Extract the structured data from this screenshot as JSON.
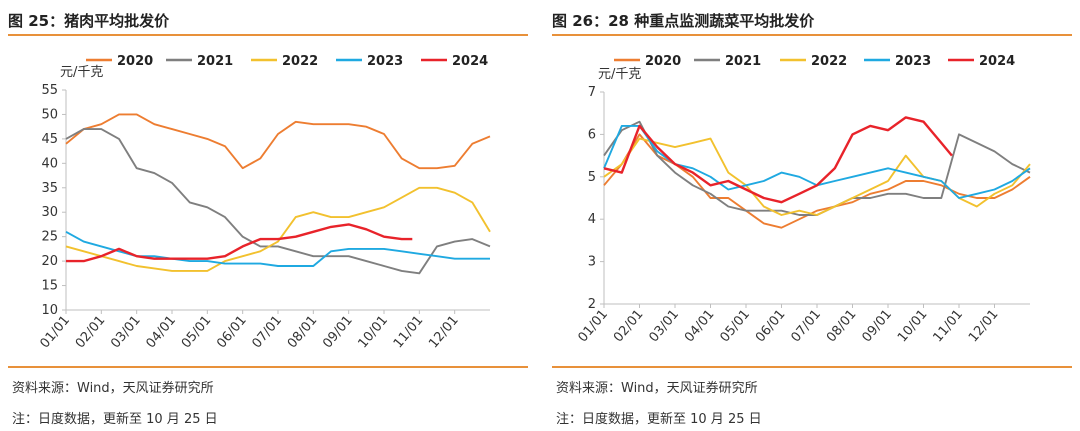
{
  "charts": [
    {
      "title": "图 25：猪肉平均批发价",
      "source": "资料来源：Wind，天风证券研究所",
      "note": "注：日度数据，更新至 10 月 25 日"
    },
    {
      "title": "图 26：28 种重点监测蔬菜平均批发价",
      "source": "资料来源：Wind，天风证券研究所",
      "note": "注：日度数据，更新至 10 月 25 日"
    }
  ],
  "chart_data": [
    {
      "type": "line",
      "ylabel": "元/千克",
      "ylim": [
        10,
        55
      ],
      "yticks": [
        10,
        15,
        20,
        25,
        30,
        35,
        40,
        45,
        50,
        55
      ],
      "categories": [
        "01/01",
        "02/01",
        "03/01",
        "04/01",
        "05/01",
        "06/01",
        "07/01",
        "08/01",
        "09/01",
        "10/01",
        "11/01",
        "12/01"
      ],
      "legend": "top",
      "series": [
        {
          "name": "2020",
          "color": "#ed7d31",
          "x": [
            0,
            0.5,
            1,
            1.5,
            2,
            2.5,
            3,
            3.5,
            4,
            4.5,
            5,
            5.5,
            6,
            6.5,
            7,
            7.5,
            8,
            8.5,
            9,
            9.5,
            10,
            10.5,
            11,
            11.5,
            12
          ],
          "values": [
            44,
            47,
            48,
            50,
            50,
            48,
            47,
            46,
            45,
            43.5,
            39,
            41,
            46,
            48.5,
            48,
            48,
            48,
            47.5,
            46,
            41,
            39,
            39,
            39.5,
            44,
            45.5
          ]
        },
        {
          "name": "2021",
          "color": "#7f7f7f",
          "x": [
            0,
            0.5,
            1,
            1.5,
            2,
            2.5,
            3,
            3.5,
            4,
            4.5,
            5,
            5.5,
            6,
            6.5,
            7,
            7.5,
            8,
            8.5,
            9,
            9.5,
            10,
            10.5,
            11,
            11.5,
            12
          ],
          "values": [
            45,
            47,
            47,
            45,
            39,
            38,
            36,
            32,
            31,
            29,
            25,
            23,
            23,
            22,
            21,
            21,
            21,
            20,
            19,
            18,
            17.5,
            23,
            24,
            24.5,
            23
          ]
        },
        {
          "name": "2022",
          "color": "#f2c12e",
          "x": [
            0,
            0.5,
            1,
            1.5,
            2,
            2.5,
            3,
            3.5,
            4,
            4.5,
            5,
            5.5,
            6,
            6.5,
            7,
            7.5,
            8,
            8.5,
            9,
            9.5,
            10,
            10.5,
            11,
            11.5,
            12
          ],
          "values": [
            23,
            22,
            21,
            20,
            19,
            18.5,
            18,
            18,
            18,
            20,
            21,
            22,
            24,
            29,
            30,
            29,
            29,
            30,
            31,
            33,
            35,
            35,
            34,
            32,
            26
          ]
        },
        {
          "name": "2023",
          "color": "#1fa9e1",
          "x": [
            0,
            0.5,
            1,
            1.5,
            2,
            2.5,
            3,
            3.5,
            4,
            4.5,
            5,
            5.5,
            6,
            6.5,
            7,
            7.5,
            8,
            8.5,
            9,
            9.5,
            10,
            10.5,
            11,
            11.5,
            12
          ],
          "values": [
            26,
            24,
            23,
            22,
            21,
            21,
            20.5,
            20,
            20,
            19.5,
            19.5,
            19.5,
            19,
            19,
            19,
            22,
            22.5,
            22.5,
            22.5,
            22,
            21.5,
            21,
            20.5,
            20.5,
            20.5
          ]
        },
        {
          "name": "2024",
          "color": "#e8232a",
          "x": [
            0,
            0.5,
            1,
            1.5,
            2,
            2.5,
            3,
            3.5,
            4,
            4.5,
            5,
            5.5,
            6,
            6.5,
            7,
            7.5,
            8,
            8.5,
            9,
            9.5,
            9.8
          ],
          "values": [
            20,
            20,
            21,
            22.5,
            21,
            20.5,
            20.5,
            20.5,
            20.5,
            21,
            23,
            24.5,
            24.5,
            25,
            26,
            27,
            27.5,
            26.5,
            25,
            24.5,
            24.5
          ]
        }
      ]
    },
    {
      "type": "line",
      "ylabel": "元/千克",
      "ylim": [
        2,
        7
      ],
      "yticks": [
        2,
        3,
        4,
        5,
        6,
        7
      ],
      "categories": [
        "01/01",
        "02/01",
        "03/01",
        "04/01",
        "05/01",
        "06/01",
        "07/01",
        "08/01",
        "09/01",
        "10/01",
        "11/01",
        "12/01"
      ],
      "legend": "top",
      "series": [
        {
          "name": "2020",
          "color": "#ed7d31",
          "x": [
            0,
            0.5,
            1,
            1.5,
            2,
            2.5,
            3,
            3.5,
            4,
            4.5,
            5,
            5.5,
            6,
            6.5,
            7,
            7.5,
            8,
            8.5,
            9,
            9.5,
            10,
            10.5,
            11,
            11.5,
            12
          ],
          "values": [
            4.8,
            5.3,
            6.0,
            5.5,
            5.3,
            5.0,
            4.5,
            4.5,
            4.2,
            3.9,
            3.8,
            4.0,
            4.2,
            4.3,
            4.4,
            4.6,
            4.7,
            4.9,
            4.9,
            4.8,
            4.6,
            4.5,
            4.5,
            4.7,
            5.0
          ]
        },
        {
          "name": "2021",
          "color": "#7f7f7f",
          "x": [
            0,
            0.5,
            1,
            1.5,
            2,
            2.5,
            3,
            3.5,
            4,
            4.5,
            5,
            5.5,
            6,
            6.5,
            7,
            7.5,
            8,
            8.5,
            9,
            9.5,
            10,
            10.5,
            11,
            11.5,
            12
          ],
          "values": [
            5.5,
            6.1,
            6.3,
            5.5,
            5.1,
            4.8,
            4.6,
            4.3,
            4.2,
            4.2,
            4.2,
            4.1,
            4.1,
            4.3,
            4.5,
            4.5,
            4.6,
            4.6,
            4.5,
            4.5,
            6.0,
            5.8,
            5.6,
            5.3,
            5.1
          ]
        },
        {
          "name": "2022",
          "color": "#f2c12e",
          "x": [
            0,
            0.5,
            1,
            1.5,
            2,
            2.5,
            3,
            3.5,
            4,
            4.5,
            5,
            5.5,
            6,
            6.5,
            7,
            7.5,
            8,
            8.5,
            9,
            9.5,
            10,
            10.5,
            11,
            11.5,
            12
          ],
          "values": [
            5.0,
            5.3,
            5.9,
            5.8,
            5.7,
            5.8,
            5.9,
            5.1,
            4.8,
            4.3,
            4.1,
            4.2,
            4.1,
            4.3,
            4.5,
            4.7,
            4.9,
            5.5,
            5.0,
            4.9,
            4.5,
            4.3,
            4.6,
            4.8,
            5.3
          ]
        },
        {
          "name": "2023",
          "color": "#1fa9e1",
          "x": [
            0,
            0.5,
            1,
            1.5,
            2,
            2.5,
            3,
            3.5,
            4,
            4.5,
            5,
            5.5,
            6,
            6.5,
            7,
            7.5,
            8,
            8.5,
            9,
            9.5,
            10,
            10.5,
            11,
            11.5,
            12
          ],
          "values": [
            5.2,
            6.2,
            6.2,
            5.6,
            5.3,
            5.2,
            5.0,
            4.7,
            4.8,
            4.9,
            5.1,
            5.0,
            4.8,
            4.9,
            5.0,
            5.1,
            5.2,
            5.1,
            5.0,
            4.9,
            4.5,
            4.6,
            4.7,
            4.9,
            5.2
          ]
        },
        {
          "name": "2024",
          "color": "#e8232a",
          "x": [
            0,
            0.5,
            1,
            1.5,
            2,
            2.5,
            3,
            3.5,
            4,
            4.5,
            5,
            5.5,
            6,
            6.5,
            7,
            7.5,
            8,
            8.5,
            9,
            9.5,
            9.8
          ],
          "values": [
            5.2,
            5.1,
            6.2,
            5.7,
            5.3,
            5.1,
            4.8,
            4.9,
            4.7,
            4.5,
            4.4,
            4.6,
            4.8,
            5.2,
            6.0,
            6.2,
            6.1,
            6.4,
            6.3,
            5.8,
            5.5
          ]
        }
      ]
    }
  ]
}
